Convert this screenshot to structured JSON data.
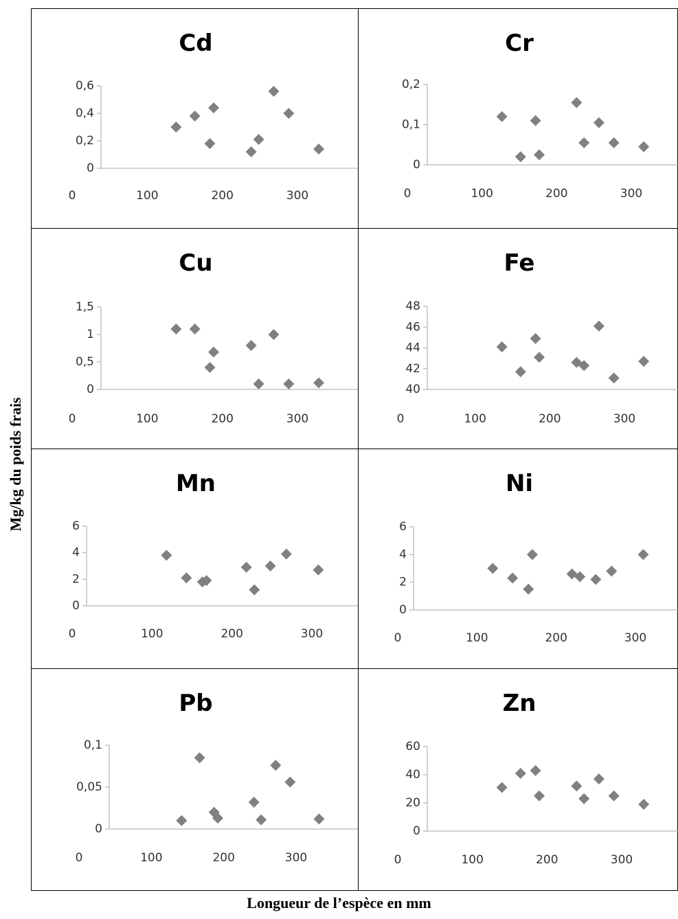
{
  "figure": {
    "ylabel": "Mg/kg du poids frais",
    "xlabel": "Longueur de l’espèce en mm"
  },
  "chart_data": [
    {
      "type": "scatter",
      "title": "Cd",
      "xlim": [
        0,
        300
      ],
      "xticks": [
        "0",
        "100",
        "200",
        "300"
      ],
      "ylim": [
        0,
        0.6
      ],
      "yticks": [
        "0",
        "0,2",
        "0,4",
        "0,6"
      ],
      "x": [
        100,
        125,
        145,
        150,
        200,
        210,
        230,
        250,
        290
      ],
      "y": [
        0.3,
        0.38,
        0.18,
        0.44,
        0.12,
        0.21,
        0.56,
        0.4,
        0.14
      ],
      "marker_color": "#808080"
    },
    {
      "type": "scatter",
      "title": "Cr",
      "xlim": [
        0,
        300
      ],
      "xticks": [
        "0",
        "100",
        "200",
        "300"
      ],
      "ylim": [
        0,
        0.2
      ],
      "yticks": [
        "0",
        "0,1",
        "0,2"
      ],
      "x": [
        100,
        125,
        145,
        150,
        200,
        210,
        230,
        250,
        290
      ],
      "y": [
        0.12,
        0.02,
        0.11,
        0.025,
        0.155,
        0.055,
        0.105,
        0.055,
        0.045
      ],
      "marker_color": "#808080"
    },
    {
      "type": "scatter",
      "title": "Cu",
      "xlim": [
        0,
        300
      ],
      "xticks": [
        "0",
        "100",
        "200",
        "300"
      ],
      "ylim": [
        0,
        1.5
      ],
      "yticks": [
        "0",
        "0,5",
        "1",
        "1,5"
      ],
      "x": [
        100,
        125,
        145,
        150,
        200,
        210,
        230,
        250,
        290
      ],
      "y": [
        1.1,
        1.1,
        0.4,
        0.68,
        0.8,
        0.1,
        1.0,
        0.1,
        0.12
      ],
      "marker_color": "#808080"
    },
    {
      "type": "scatter",
      "title": "Fe",
      "xlim": [
        0,
        300
      ],
      "xticks": [
        "0",
        "100",
        "200",
        "300"
      ],
      "ylim": [
        40,
        48
      ],
      "yticks": [
        "40",
        "42",
        "44",
        "46",
        "48"
      ],
      "x": [
        100,
        125,
        145,
        150,
        200,
        210,
        230,
        250,
        290
      ],
      "y": [
        44.1,
        41.7,
        44.9,
        43.1,
        42.6,
        42.3,
        46.1,
        41.1,
        42.7
      ],
      "marker_color": "#808080"
    },
    {
      "type": "scatter",
      "title": "Mn",
      "xlim": [
        0,
        300
      ],
      "xticks": [
        "0",
        "100",
        "200",
        "300"
      ],
      "ylim": [
        0,
        6
      ],
      "yticks": [
        "0",
        "2",
        "4",
        "6"
      ],
      "x": [
        100,
        125,
        145,
        150,
        200,
        210,
        230,
        250,
        290
      ],
      "y": [
        3.8,
        2.1,
        1.8,
        1.9,
        2.9,
        1.2,
        3.0,
        3.9,
        2.7
      ],
      "marker_color": "#808080"
    },
    {
      "type": "scatter",
      "title": "Ni",
      "xlim": [
        0,
        300
      ],
      "xticks": [
        "0",
        "100",
        "200",
        "300"
      ],
      "ylim": [
        0,
        6
      ],
      "yticks": [
        "0",
        "2",
        "4",
        "6"
      ],
      "x": [
        100,
        125,
        145,
        150,
        200,
        210,
        230,
        250,
        290
      ],
      "y": [
        3.0,
        2.3,
        1.5,
        4.0,
        2.6,
        2.4,
        2.2,
        2.8,
        4.0
      ],
      "marker_color": "#808080"
    },
    {
      "type": "scatter",
      "title": "Pb",
      "xlim": [
        0,
        300
      ],
      "xticks": [
        "0",
        "100",
        "200",
        "300"
      ],
      "ylim": [
        0,
        0.1
      ],
      "yticks": [
        "0",
        "0,05",
        "0,1"
      ],
      "x": [
        100,
        125,
        145,
        150,
        200,
        210,
        230,
        250,
        290
      ],
      "y": [
        0.01,
        0.085,
        0.02,
        0.013,
        0.032,
        0.011,
        0.076,
        0.056,
        0.012
      ],
      "marker_color": "#808080"
    },
    {
      "type": "scatter",
      "title": "Zn",
      "xlim": [
        0,
        300
      ],
      "xticks": [
        "0",
        "100",
        "200",
        "300"
      ],
      "ylim": [
        0,
        60
      ],
      "yticks": [
        "0",
        "20",
        "40",
        "60"
      ],
      "x": [
        100,
        125,
        145,
        150,
        200,
        210,
        230,
        250,
        290
      ],
      "y": [
        31,
        41,
        43,
        25,
        32,
        23,
        37,
        25,
        19
      ],
      "marker_color": "#808080"
    }
  ]
}
